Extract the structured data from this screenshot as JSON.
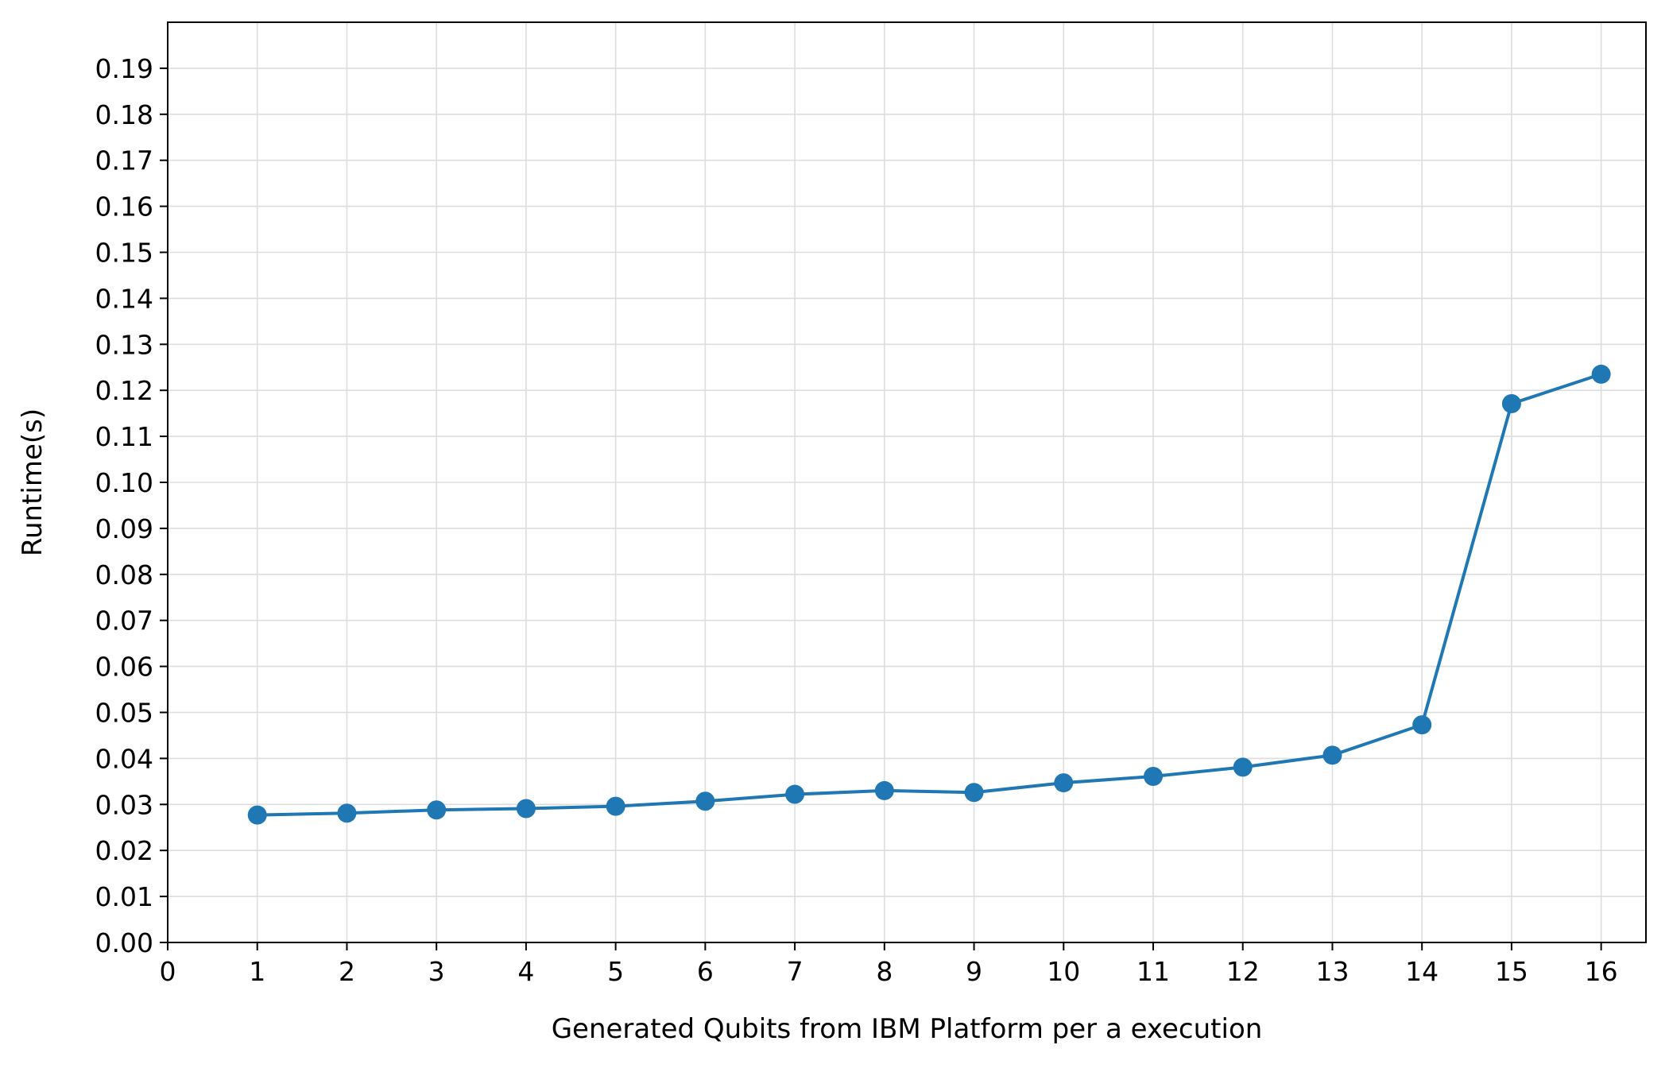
{
  "chart_data": {
    "type": "line",
    "title": "",
    "xlabel": "Generated Qubits from IBM Platform per a execution",
    "ylabel": "Runtime(s)",
    "xlim": [
      0,
      16.5
    ],
    "ylim": [
      0,
      0.2
    ],
    "x_ticks": [
      "0",
      "1",
      "2",
      "3",
      "4",
      "5",
      "6",
      "7",
      "8",
      "9",
      "10",
      "11",
      "12",
      "13",
      "14",
      "15",
      "16"
    ],
    "y_ticks": [
      "0.00",
      "0.01",
      "0.02",
      "0.03",
      "0.04",
      "0.05",
      "0.06",
      "0.07",
      "0.08",
      "0.09",
      "0.10",
      "0.11",
      "0.12",
      "0.13",
      "0.14",
      "0.15",
      "0.16",
      "0.17",
      "0.18",
      "0.19"
    ],
    "grid": true,
    "legend": "none",
    "series": [
      {
        "color": "#1f77b4",
        "marker": "circle",
        "x": [
          1,
          2,
          3,
          4,
          5,
          6,
          7,
          8,
          9,
          10,
          11,
          12,
          13,
          14,
          15,
          16
        ],
        "y": [
          0.0277,
          0.0281,
          0.0288,
          0.0291,
          0.0296,
          0.0307,
          0.0322,
          0.033,
          0.0326,
          0.0347,
          0.0361,
          0.0381,
          0.0407,
          0.0473,
          0.1171,
          0.1235
        ]
      }
    ]
  }
}
